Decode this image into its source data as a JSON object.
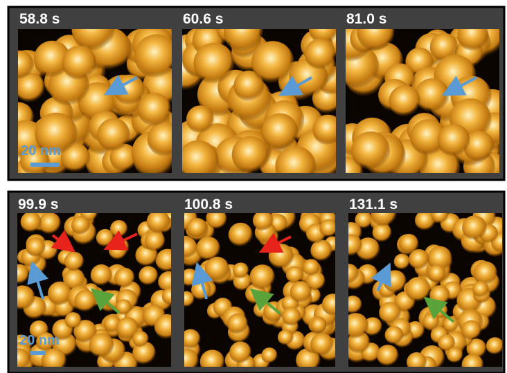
{
  "panels": [
    {
      "frames": [
        {
          "time": "58.8 s"
        },
        {
          "time": "60.6 s"
        },
        {
          "time": "81.0 s"
        }
      ],
      "scale_bar": "20 nm"
    },
    {
      "frames": [
        {
          "time": "99.9 s"
        },
        {
          "time": "100.8 s"
        },
        {
          "time": "131.1 s"
        }
      ],
      "scale_bar": "20 nm"
    }
  ]
}
